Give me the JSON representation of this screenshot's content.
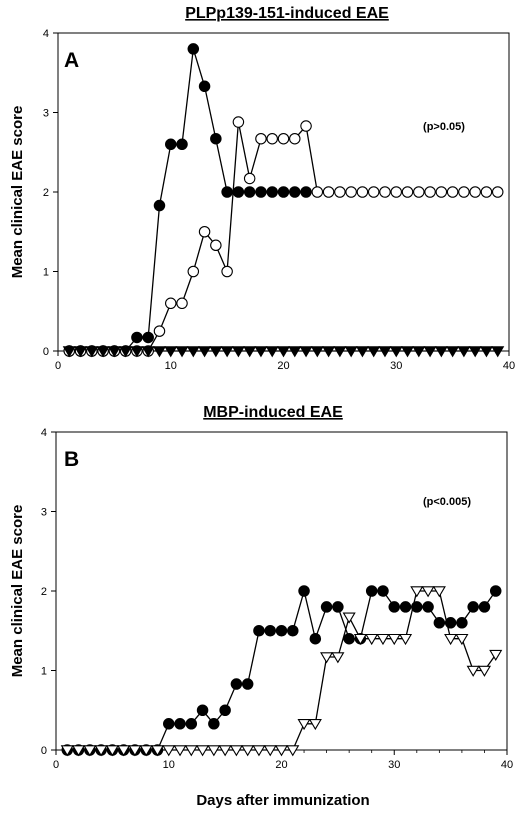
{
  "figure_xlabel": "Days after immunization",
  "chart_data": [
    {
      "type": "line",
      "panel": "A",
      "title": "PLPp139-151-induced EAE",
      "ylabel": "Mean clinical EAE score",
      "xlabel": "",
      "annotation": "(p>0.05)",
      "xlim": [
        0,
        40
      ],
      "ylim": [
        0,
        4
      ],
      "xticks": [
        0,
        10,
        20,
        30,
        40
      ],
      "yticks": [
        0,
        1,
        2,
        3,
        4
      ],
      "series": [
        {
          "marker": "filled-circle",
          "x": [
            1,
            2,
            3,
            4,
            5,
            6,
            7,
            8,
            9,
            10,
            11,
            12,
            13,
            14,
            15,
            16,
            17,
            18,
            19,
            20,
            21,
            22
          ],
          "y": [
            0,
            0,
            0,
            0,
            0,
            0,
            0.17,
            0.17,
            1.83,
            2.6,
            2.6,
            3.8,
            3.33,
            2.67,
            2.0,
            2.0,
            2.0,
            2.0,
            2.0,
            2.0,
            2.0,
            2.0
          ]
        },
        {
          "marker": "open-circle",
          "x": [
            1,
            2,
            3,
            4,
            5,
            6,
            7,
            8,
            9,
            10,
            11,
            12,
            13,
            14,
            15,
            16,
            17,
            18,
            19,
            20,
            21,
            22,
            23,
            24,
            25,
            26,
            27,
            28,
            29,
            30,
            31,
            32,
            33,
            34,
            35,
            36,
            37,
            38,
            39
          ],
          "y": [
            0,
            0,
            0,
            0,
            0,
            0,
            0,
            0,
            0.25,
            0.6,
            0.6,
            1.0,
            1.5,
            1.33,
            1.0,
            2.88,
            2.17,
            2.67,
            2.67,
            2.67,
            2.67,
            2.83,
            2.0,
            2.0,
            2.0,
            2.0,
            2.0,
            2.0,
            2.0,
            2.0,
            2.0,
            2.0,
            2.0,
            2.0,
            2.0,
            2.0,
            2.0,
            2.0,
            2.0
          ]
        },
        {
          "marker": "filled-triangle-down",
          "x": [
            1,
            2,
            3,
            4,
            5,
            6,
            7,
            8,
            9,
            10,
            11,
            12,
            13,
            14,
            15,
            16,
            17,
            18,
            19,
            20,
            21,
            22,
            23,
            24,
            25,
            26,
            27,
            28,
            29,
            30,
            31,
            32,
            33,
            34,
            35,
            36,
            37,
            38,
            39
          ],
          "y": [
            0,
            0,
            0,
            0,
            0,
            0,
            0,
            0,
            0,
            0,
            0,
            0,
            0,
            0,
            0,
            0,
            0,
            0,
            0,
            0,
            0,
            0,
            0,
            0,
            0,
            0,
            0,
            0,
            0,
            0,
            0,
            0,
            0,
            0,
            0,
            0,
            0,
            0,
            0
          ]
        }
      ]
    },
    {
      "type": "line",
      "panel": "B",
      "title": "MBP-induced EAE",
      "ylabel": "Mean clinical EAE score",
      "xlabel": "Days after immunization",
      "annotation": "(p<0.005)",
      "xlim": [
        0,
        40
      ],
      "ylim": [
        0,
        4
      ],
      "xticks": [
        0,
        10,
        20,
        30,
        40
      ],
      "yticks": [
        0,
        1,
        2,
        3,
        4
      ],
      "series": [
        {
          "marker": "filled-circle",
          "x": [
            1,
            2,
            3,
            4,
            5,
            6,
            7,
            8,
            9,
            10,
            11,
            12,
            13,
            14,
            15,
            16,
            17,
            18,
            19,
            20,
            21,
            22,
            23,
            24,
            25,
            26,
            27,
            28,
            29,
            30,
            31,
            32,
            33,
            34,
            35,
            36,
            37,
            38,
            39
          ],
          "y": [
            0,
            0,
            0,
            0,
            0,
            0,
            0,
            0,
            0,
            0.33,
            0.33,
            0.33,
            0.5,
            0.33,
            0.5,
            0.83,
            0.83,
            1.5,
            1.5,
            1.5,
            1.5,
            2.0,
            1.4,
            1.8,
            1.8,
            1.4,
            1.4,
            2.0,
            2.0,
            1.8,
            1.8,
            1.8,
            1.8,
            1.6,
            1.6,
            1.6,
            1.8,
            1.8,
            2.0
          ]
        },
        {
          "marker": "open-triangle-down",
          "x": [
            1,
            2,
            3,
            4,
            5,
            6,
            7,
            8,
            9,
            10,
            11,
            12,
            13,
            14,
            15,
            16,
            17,
            18,
            19,
            20,
            21,
            22,
            23,
            24,
            25,
            26,
            27,
            28,
            29,
            30,
            31,
            32,
            33,
            34,
            35,
            36,
            37,
            38,
            39
          ],
          "y": [
            0,
            0,
            0,
            0,
            0,
            0,
            0,
            0,
            0,
            0,
            0,
            0,
            0,
            0,
            0,
            0,
            0,
            0,
            0,
            0,
            0,
            0.33,
            0.33,
            1.17,
            1.17,
            1.67,
            1.4,
            1.4,
            1.4,
            1.4,
            1.4,
            2.0,
            2.0,
            2.0,
            1.4,
            1.4,
            1.0,
            1.0,
            1.2
          ]
        }
      ]
    }
  ]
}
